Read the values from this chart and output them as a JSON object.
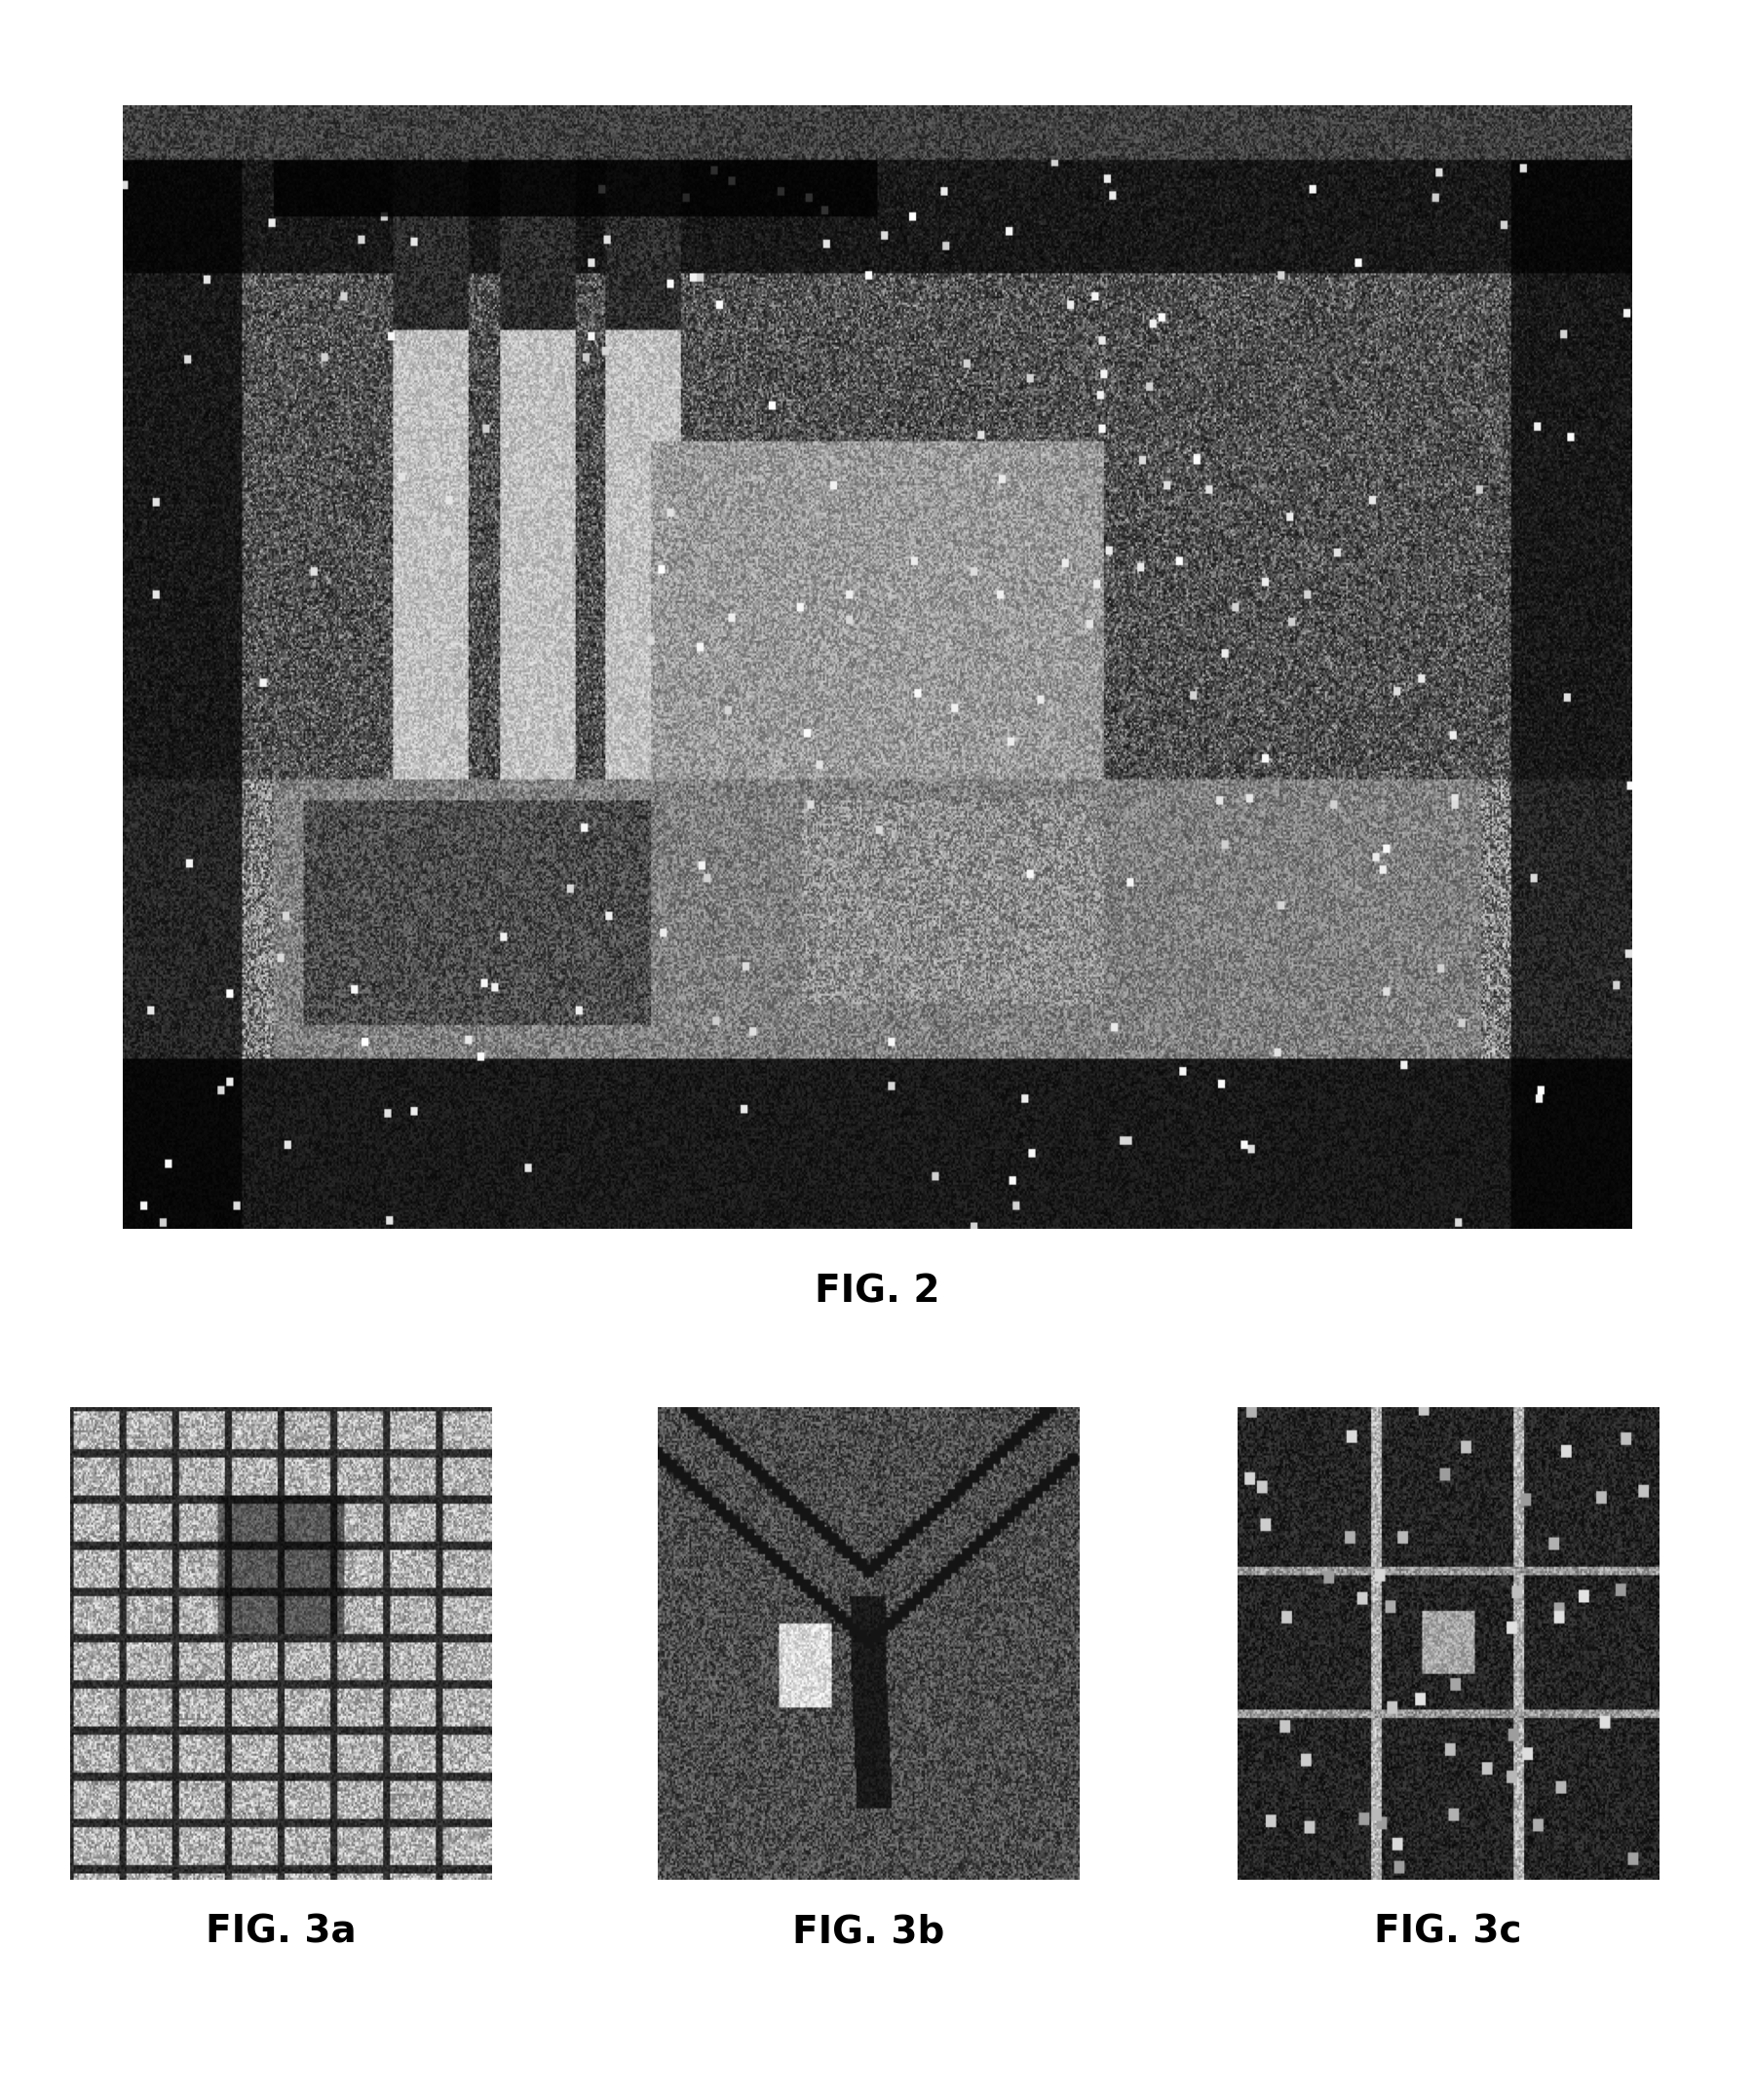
{
  "fig2_label": "FIG. 2",
  "fig3a_label": "FIG. 3a",
  "fig3b_label": "FIG. 3b",
  "fig3c_label": "FIG. 3c",
  "background_color": "#ffffff",
  "label_fontsize": 28,
  "label_fontweight": "bold"
}
